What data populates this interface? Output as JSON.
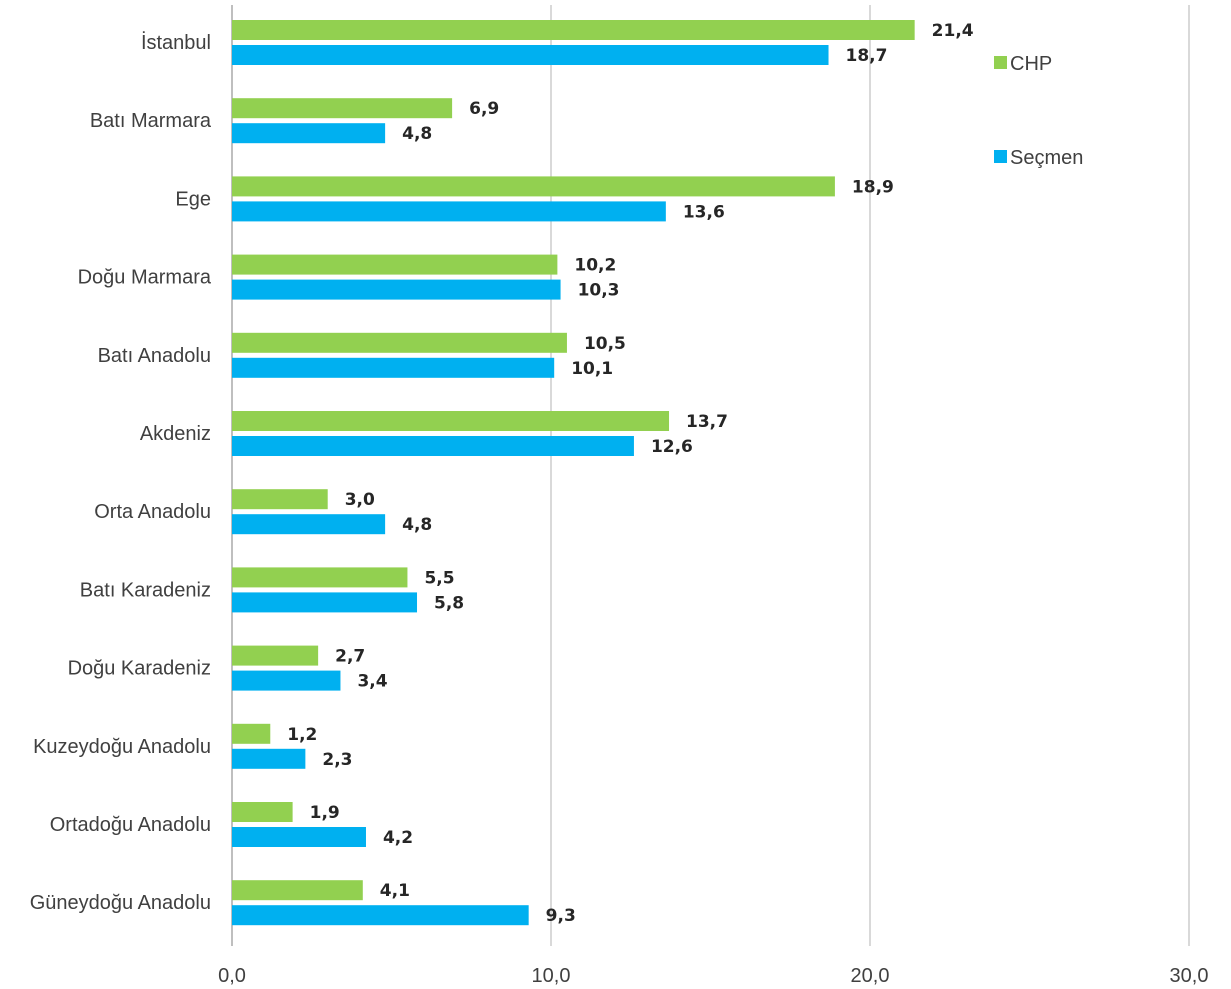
{
  "chart_data": {
    "type": "bar",
    "orientation": "horizontal",
    "categories": [
      "İstanbul",
      "Batı Marmara",
      "Ege",
      "Doğu Marmara",
      "Batı Anadolu",
      "Akdeniz",
      "Orta Anadolu",
      "Batı Karadeniz",
      "Doğu Karadeniz",
      "Kuzeydoğu Anadolu",
      "Ortadoğu Anadolu",
      "Güneydoğu Anadolu"
    ],
    "series": [
      {
        "name": "CHP",
        "color": "#92d050",
        "values": [
          21.4,
          6.9,
          18.9,
          10.2,
          10.5,
          13.7,
          3.0,
          5.5,
          2.7,
          1.2,
          1.9,
          4.1
        ],
        "labels": [
          "21,4",
          "6,9",
          "18,9",
          "10,2",
          "10,5",
          "13,7",
          "3,0",
          "5,5",
          "2,7",
          "1,2",
          "1,9",
          "4,1"
        ]
      },
      {
        "name": "Seçmen",
        "color": "#00b0f0",
        "values": [
          18.7,
          4.8,
          13.6,
          10.3,
          10.1,
          12.6,
          4.8,
          5.8,
          3.4,
          2.3,
          4.2,
          9.3
        ],
        "labels": [
          "18,7",
          "4,8",
          "13,6",
          "10,3",
          "10,1",
          "12,6",
          "4,8",
          "5,8",
          "3,4",
          "2,3",
          "4,2",
          "9,3"
        ]
      }
    ],
    "xlim": [
      0,
      30
    ],
    "xticks": [
      0,
      10,
      20,
      30
    ],
    "xtick_labels": [
      "0,0",
      "10,0",
      "20,0",
      "30,0"
    ],
    "grid": "vertical",
    "legend": "top-right",
    "title": "",
    "xlabel": "",
    "ylabel": ""
  }
}
